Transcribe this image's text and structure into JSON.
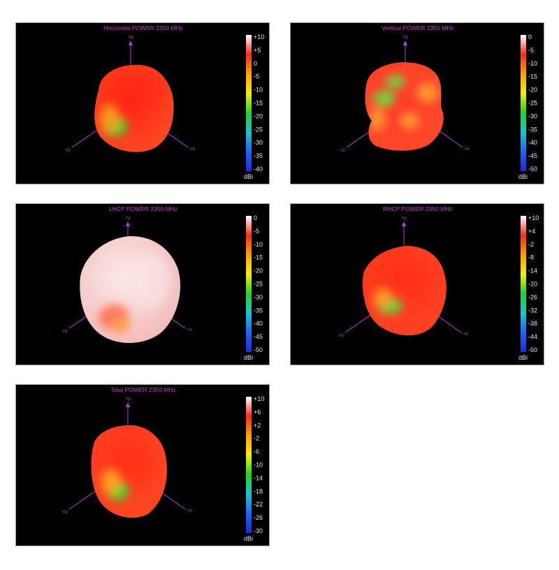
{
  "colors": {
    "background": "#ffffff",
    "panel_background": "#000000",
    "title_color": "#c23cc8",
    "axis_color": "#b040d8",
    "colorbar_gradient": [
      "#ffffff",
      "#ff2a1a",
      "#ffa000",
      "#f5f000",
      "#22d22a",
      "#18c8c8",
      "#1e64ff",
      "#1e28e0"
    ]
  },
  "panels": [
    {
      "title": "Horizontal POWER 2350  MHz",
      "colorbar_ticks": [
        "+10",
        "+5",
        "0",
        "-5",
        "-10",
        "-15",
        "-20",
        "-25",
        "-30",
        "-35",
        "-40"
      ],
      "unit": "dBi",
      "axes": {
        "y": "+y",
        "z": "+z",
        "x": "+x"
      },
      "pattern_colors": {
        "base": "#ff4a24",
        "highlight": "#ff2414",
        "low": "#ffa020",
        "min": "#22dd30"
      }
    },
    {
      "title": "Vertical POWER 2350  MHz",
      "colorbar_ticks": [
        "0",
        "-5",
        "-10",
        "-15",
        "-20",
        "-25",
        "-30",
        "-35",
        "-40",
        "-45",
        "-50"
      ],
      "unit": "dBi",
      "axes": {
        "y": "+y",
        "z": "+z",
        "x": "+x"
      },
      "pattern_colors": {
        "base": "#ff4a2a",
        "highlight": "#ff3a2a",
        "low": "#ffa030",
        "min": "#66e040"
      }
    },
    {
      "title": "LHCP POWER 2350  MHz",
      "colorbar_ticks": [
        "0",
        "-5",
        "-10",
        "-15",
        "-20",
        "-25",
        "-30",
        "-35",
        "-40",
        "-45",
        "-50"
      ],
      "unit": "dBi",
      "axes": {
        "y": "+y",
        "z": "+z",
        "x": "+x"
      },
      "pattern_colors": {
        "base": "#f2b8b8",
        "highlight": "#fbe9e9",
        "low": "#ff6a50",
        "min": "#ffa050"
      }
    },
    {
      "title": "RHCP POWER 2350  MHz",
      "colorbar_ticks": [
        "+10",
        "+4",
        "-2",
        "-8",
        "-14",
        "-20",
        "-26",
        "-32",
        "-38",
        "-44",
        "-50"
      ],
      "unit": "dBi",
      "axes": {
        "y": "+y",
        "z": "+z",
        "x": "+x"
      },
      "pattern_colors": {
        "base": "#ff4424",
        "highlight": "#ff3018",
        "low": "#ffa028",
        "min": "#4ee040"
      }
    },
    {
      "title": "Total POWER 2350  MHz",
      "colorbar_ticks": [
        "+10",
        "+6",
        "+2",
        "-2",
        "-6",
        "-10",
        "-14",
        "-18",
        "-22",
        "-26",
        "-30"
      ],
      "unit": "dBi",
      "axes": {
        "y": "+y",
        "z": "+z",
        "x": "+x"
      },
      "pattern_colors": {
        "base": "#ff4a24",
        "highlight": "#ff3018",
        "low": "#ffa820",
        "min": "#2ee030"
      }
    }
  ]
}
